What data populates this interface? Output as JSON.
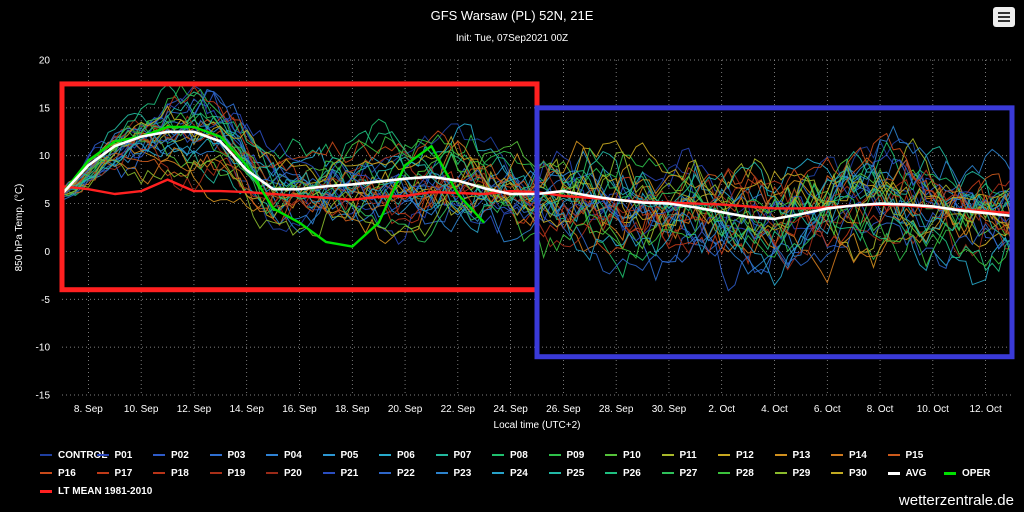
{
  "title": "GFS Warsaw (PL) 52N, 21E",
  "subtitle": "Init: Tue, 07Sep2021 00Z",
  "credits": "wetterzentrale.de",
  "chart_data": {
    "type": "line",
    "ylabel": "850 hPa Temp. (°C)",
    "xlabel": "Local time (UTC+2)",
    "ylim": [
      -15,
      20
    ],
    "yticks": [
      -15,
      -10,
      -5,
      0,
      5,
      10,
      15,
      20
    ],
    "xrange_days": [
      "2021-09-07",
      "2021-10-13"
    ],
    "xticks": [
      {
        "date": "2021-09-08",
        "label": "8. Sep"
      },
      {
        "date": "2021-09-10",
        "label": "10. Sep"
      },
      {
        "date": "2021-09-12",
        "label": "12. Sep"
      },
      {
        "date": "2021-09-14",
        "label": "14. Sep"
      },
      {
        "date": "2021-09-16",
        "label": "16. Sep"
      },
      {
        "date": "2021-09-18",
        "label": "18. Sep"
      },
      {
        "date": "2021-09-20",
        "label": "20. Sep"
      },
      {
        "date": "2021-09-22",
        "label": "22. Sep"
      },
      {
        "date": "2021-09-24",
        "label": "24. Sep"
      },
      {
        "date": "2021-09-26",
        "label": "26. Sep"
      },
      {
        "date": "2021-09-28",
        "label": "28. Sep"
      },
      {
        "date": "2021-09-30",
        "label": "30. Sep"
      },
      {
        "date": "2021-10-02",
        "label": "2. Oct"
      },
      {
        "date": "2021-10-04",
        "label": "4. Oct"
      },
      {
        "date": "2021-10-06",
        "label": "6. Oct"
      },
      {
        "date": "2021-10-08",
        "label": "8. Oct"
      },
      {
        "date": "2021-10-10",
        "label": "10. Oct"
      },
      {
        "date": "2021-10-12",
        "label": "12. Oct"
      }
    ],
    "grid": "dotted",
    "legend_position": "bottom",
    "series_names": [
      "CONTROL",
      "P01",
      "P02",
      "P03",
      "P04",
      "P05",
      "P06",
      "P07",
      "P08",
      "P09",
      "P10",
      "P11",
      "P12",
      "P13",
      "P14",
      "P15",
      "P16",
      "P17",
      "P18",
      "P19",
      "P20",
      "P21",
      "P22",
      "P23",
      "P24",
      "P25",
      "P26",
      "P27",
      "P28",
      "P29",
      "P30",
      "AVG",
      "OPER",
      "LT MEAN 1981-2010"
    ],
    "colors": {
      "CONTROL": "#1f3fa0",
      "P01": "#2a46b8",
      "P02": "#2e5bc8",
      "P03": "#2f6fd0",
      "P04": "#2f82d4",
      "P05": "#2c96d2",
      "P06": "#27aacb",
      "P07": "#22b89e",
      "P08": "#1fbf6e",
      "P09": "#2ec04a",
      "P10": "#55c23a",
      "P11": "#a8b82a",
      "P12": "#c8a820",
      "P13": "#d0901e",
      "P14": "#d07a1e",
      "P15": "#cc5a1c",
      "P16": "#c84a1a",
      "P17": "#c03a18",
      "P18": "#b83418",
      "P19": "#a82f18",
      "P20": "#9a2a18",
      "P21": "#2a4ec0",
      "P22": "#2e66c8",
      "P23": "#2c82cc",
      "P24": "#27a2c8",
      "P25": "#22b8a6",
      "P26": "#1fbf80",
      "P27": "#2ec05a",
      "P28": "#3bc13c",
      "P29": "#8aba2c",
      "P30": "#c2aa22",
      "AVG": "#ffffff",
      "OPER": "#00e000",
      "LT MEAN 1981-2010": "#ff2020"
    },
    "series": [
      {
        "name": "AVG",
        "x": [
          "2021-09-07",
          "2021-09-08",
          "2021-09-09",
          "2021-09-10",
          "2021-09-11",
          "2021-09-12",
          "2021-09-13",
          "2021-09-14",
          "2021-09-15",
          "2021-09-16",
          "2021-09-17",
          "2021-09-18",
          "2021-09-19",
          "2021-09-20",
          "2021-09-21",
          "2021-09-22",
          "2021-09-23",
          "2021-09-24",
          "2021-09-25",
          "2021-09-26",
          "2021-09-27",
          "2021-09-28",
          "2021-09-29",
          "2021-09-30",
          "2021-10-01",
          "2021-10-02",
          "2021-10-03",
          "2021-10-04",
          "2021-10-05",
          "2021-10-06",
          "2021-10-07",
          "2021-10-08",
          "2021-10-09",
          "2021-10-10",
          "2021-10-11",
          "2021-10-12",
          "2021-10-13"
        ],
        "values": [
          6.0,
          9.0,
          11.0,
          12.0,
          12.5,
          12.5,
          11.5,
          8.5,
          6.5,
          6.5,
          6.8,
          7.0,
          7.3,
          7.6,
          7.8,
          7.4,
          6.6,
          6.0,
          6.0,
          6.3,
          5.8,
          5.4,
          5.1,
          5.0,
          4.6,
          4.1,
          3.6,
          3.4,
          3.9,
          4.5,
          4.8,
          5.0,
          4.9,
          4.7,
          4.3,
          4.0,
          3.7
        ]
      },
      {
        "name": "LT MEAN 1981-2010",
        "x": [
          "2021-09-07",
          "2021-09-08",
          "2021-09-09",
          "2021-09-10",
          "2021-09-11",
          "2021-09-12",
          "2021-09-13",
          "2021-09-14",
          "2021-09-15",
          "2021-09-16",
          "2021-09-17",
          "2021-09-18",
          "2021-09-19",
          "2021-09-20",
          "2021-09-21",
          "2021-09-22",
          "2021-09-23",
          "2021-09-24",
          "2021-09-25",
          "2021-09-26",
          "2021-09-27",
          "2021-09-28",
          "2021-09-29",
          "2021-09-30",
          "2021-10-01",
          "2021-10-02",
          "2021-10-03",
          "2021-10-04",
          "2021-10-05",
          "2021-10-06",
          "2021-10-07",
          "2021-10-08",
          "2021-10-09",
          "2021-10-10",
          "2021-10-11",
          "2021-10-12",
          "2021-10-13"
        ],
        "values": [
          6.8,
          6.5,
          6.0,
          6.3,
          7.5,
          6.3,
          6.3,
          6.2,
          6.0,
          5.8,
          5.6,
          5.4,
          5.7,
          5.8,
          6.2,
          6.1,
          6.0,
          6.3,
          6.2,
          5.8,
          5.6,
          5.4,
          5.2,
          5.1,
          5.0,
          4.9,
          4.7,
          4.5,
          4.5,
          4.6,
          4.8,
          4.9,
          4.8,
          4.6,
          4.4,
          4.2,
          4.0
        ]
      },
      {
        "name": "OPER",
        "x": [
          "2021-09-07",
          "2021-09-08",
          "2021-09-09",
          "2021-09-10",
          "2021-09-11",
          "2021-09-12",
          "2021-09-13",
          "2021-09-14",
          "2021-09-15",
          "2021-09-16",
          "2021-09-17",
          "2021-09-18",
          "2021-09-19",
          "2021-09-20",
          "2021-09-21",
          "2021-09-22",
          "2021-09-23"
        ],
        "values": [
          6.0,
          9.5,
          11.5,
          12.0,
          13.0,
          13.0,
          12.0,
          9.0,
          4.5,
          3.0,
          1.0,
          0.5,
          3.0,
          9.0,
          11.0,
          6.0,
          3.0
        ]
      }
    ],
    "annotations": [
      {
        "type": "rectangle",
        "color": "#ff2020",
        "x": [
          "2021-09-07",
          "2021-09-25"
        ],
        "y": [
          -4,
          17.5
        ]
      },
      {
        "type": "rectangle",
        "color": "#3a3ad8",
        "x": [
          "2021-09-25",
          "2021-10-13"
        ],
        "y": [
          -11,
          15
        ]
      }
    ]
  }
}
